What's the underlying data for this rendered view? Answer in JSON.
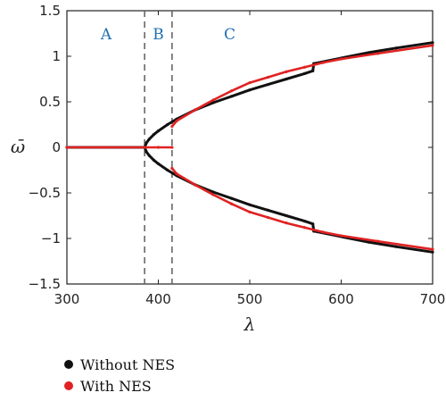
{
  "chart_data": {
    "type": "scatter",
    "xlabel": "λ",
    "ylabel": "ω̄",
    "xlim": [
      300,
      700
    ],
    "ylim": [
      -1.5,
      1.5
    ],
    "xticks": [
      "300",
      "400",
      "500",
      "600",
      "700"
    ],
    "yticks": [
      "1.5",
      "1",
      "0.5",
      "0",
      "−0.5",
      "−1",
      "−1.5"
    ],
    "grid": false,
    "regions": [
      {
        "label": "A",
        "x": 343
      },
      {
        "label": "B",
        "x": 400
      },
      {
        "label": "C",
        "x": 478
      }
    ],
    "boundaries": [
      385,
      415
    ],
    "series": [
      {
        "name": "Without NES",
        "color": "#111111",
        "branches": [
          {
            "x": [
              300,
              340,
              385
            ],
            "y": [
              0,
              0,
              0
            ]
          },
          {
            "x": [
              385,
              387,
              390,
              395,
              400,
              410,
              420,
              440,
              460,
              480,
              500,
              520,
              540,
              560,
              569,
              570,
              600,
              630,
              660,
              700
            ],
            "y": [
              0,
              0.05,
              0.09,
              0.14,
              0.18,
              0.25,
              0.31,
              0.41,
              0.49,
              0.56,
              0.63,
              0.69,
              0.75,
              0.81,
              0.84,
              0.92,
              0.98,
              1.04,
              1.09,
              1.15
            ]
          },
          {
            "x": [
              385,
              387,
              390,
              395,
              400,
              410,
              420,
              440,
              460,
              480,
              500,
              520,
              540,
              560,
              569,
              570,
              600,
              630,
              660,
              700
            ],
            "y": [
              0,
              -0.05,
              -0.09,
              -0.14,
              -0.18,
              -0.25,
              -0.31,
              -0.41,
              -0.49,
              -0.56,
              -0.63,
              -0.69,
              -0.75,
              -0.81,
              -0.84,
              -0.92,
              -0.98,
              -1.04,
              -1.09,
              -1.15
            ]
          }
        ]
      },
      {
        "name": "With NES",
        "color": "#e02222",
        "branches": [
          {
            "x": [
              300,
              340,
              385,
              400,
              415
            ],
            "y": [
              0,
              0,
              0,
              0,
              0
            ]
          },
          {
            "x": [
              415,
              420,
              440,
              460,
              480,
              500,
              520,
              540,
              560,
              580,
              600,
              640,
              700
            ],
            "y": [
              0.23,
              0.29,
              0.41,
              0.52,
              0.62,
              0.71,
              0.77,
              0.83,
              0.88,
              0.93,
              0.97,
              1.03,
              1.12
            ]
          },
          {
            "x": [
              415,
              420,
              440,
              460,
              480,
              500,
              520,
              540,
              560,
              580,
              600,
              640,
              700
            ],
            "y": [
              -0.23,
              -0.29,
              -0.41,
              -0.52,
              -0.62,
              -0.71,
              -0.77,
              -0.83,
              -0.88,
              -0.93,
              -0.97,
              -1.03,
              -1.12
            ]
          }
        ]
      }
    ]
  },
  "legend": {
    "items": [
      {
        "label": "Without NES",
        "color": "#111111"
      },
      {
        "label": "With NES",
        "color": "#e02222"
      }
    ]
  }
}
